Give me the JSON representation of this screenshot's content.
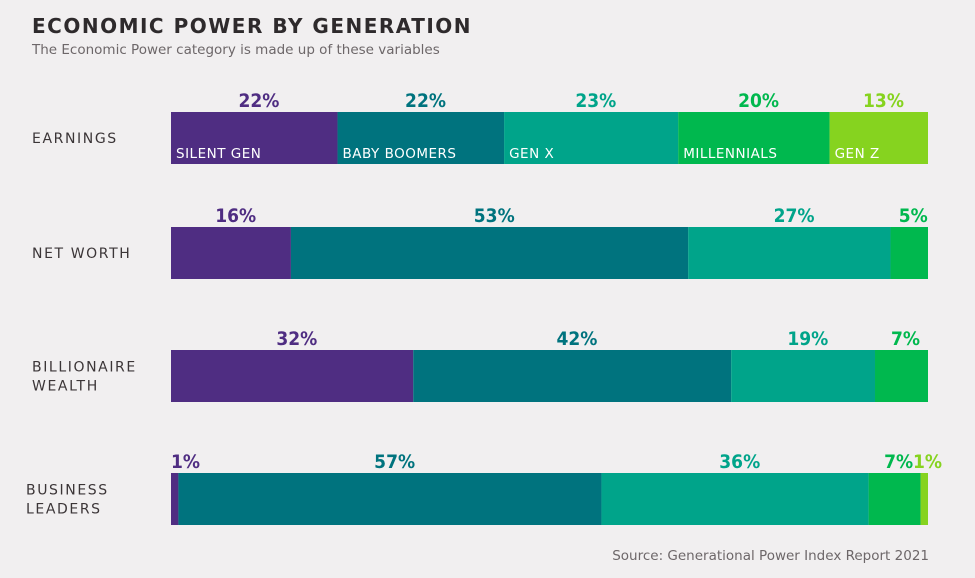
{
  "title": "ECONOMIC POWER BY GENERATION",
  "subtitle": "The Economic Power category is made up of these variables",
  "source": "Source: Generational Power Index Report 2021",
  "colors": {
    "silent_gen": "#4f2d82",
    "baby_boomers": "#00737e",
    "gen_x": "#00a48a",
    "millennials": "#00b84e",
    "gen_z": "#86d31f"
  },
  "chart_data": {
    "type": "bar",
    "orientation": "horizontal",
    "stacked": true,
    "normalized": "percent",
    "categories": [
      "EARNINGS",
      "NET WORTH",
      "BILLIONAIRE WEALTH",
      "BUSINESS LEADERS"
    ],
    "category_lines": [
      [
        "EARNINGS"
      ],
      [
        "NET WORTH"
      ],
      [
        "BILLIONAIRE",
        "WEALTH"
      ],
      [
        "BUSINESS",
        "LEADERS"
      ]
    ],
    "series": [
      {
        "name": "SILENT GEN",
        "color": "#4f2d82",
        "values": [
          22,
          16,
          32,
          1
        ],
        "labels": [
          "22%",
          "16%",
          "32%",
          "1%"
        ]
      },
      {
        "name": "BABY BOOMERS",
        "color": "#00737e",
        "values": [
          22,
          53,
          42,
          57
        ],
        "labels": [
          "22%",
          "53%",
          "42%",
          "57%"
        ]
      },
      {
        "name": "GEN X",
        "color": "#00a48a",
        "values": [
          23,
          27,
          19,
          36
        ],
        "labels": [
          "23%",
          "27%",
          "19%",
          "36%"
        ]
      },
      {
        "name": "MILLENNIALS",
        "color": "#00b84e",
        "values": [
          20,
          5,
          7,
          7
        ],
        "labels": [
          "20%",
          "5%",
          "7%",
          "7%"
        ]
      },
      {
        "name": "GEN Z",
        "color": "#86d31f",
        "values": [
          13,
          null,
          null,
          1
        ],
        "labels": [
          "13%",
          "",
          "",
          "1%"
        ]
      }
    ],
    "label_colors": [
      "#4f2d82",
      "#00737e",
      "#00a48a",
      "#00b84e",
      "#86d31f"
    ],
    "legend": "inside first bar"
  }
}
